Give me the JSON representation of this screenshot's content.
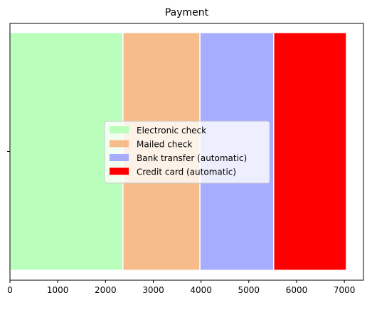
{
  "chart_data": {
    "type": "bar",
    "orientation": "horizontal",
    "stacked": true,
    "title": "Payment",
    "xlabel": "",
    "ylabel": "",
    "xlim": [
      0,
      7400
    ],
    "x_ticks": [
      0,
      1000,
      2000,
      3000,
      4000,
      5000,
      6000,
      7000
    ],
    "categories": [
      ""
    ],
    "series": [
      {
        "name": "Electronic check",
        "values": [
          2365
        ],
        "color": "#b9ffbb"
      },
      {
        "name": "Mailed check",
        "values": [
          1612
        ],
        "color": "#f6bc8a"
      },
      {
        "name": "Bank transfer (automatic)",
        "values": [
          1544
        ],
        "color": "#a6adff"
      },
      {
        "name": "Credit card (automatic)",
        "values": [
          1522
        ],
        "color": "#ff0000"
      }
    ],
    "legend": {
      "position": "center"
    },
    "grid": false
  }
}
